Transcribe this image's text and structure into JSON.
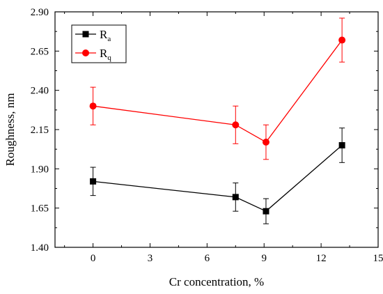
{
  "chart_data": {
    "type": "line",
    "xlabel": "Cr concentration, %",
    "ylabel": "Roughness, nm",
    "xlim": [
      -2,
      15
    ],
    "ylim": [
      1.4,
      2.9
    ],
    "xticks": [
      "0",
      "3",
      "6",
      "9",
      "12",
      "15"
    ],
    "yticks": [
      "1.40",
      "1.65",
      "1.90",
      "2.15",
      "2.40",
      "2.65",
      "2.90"
    ],
    "grid": false,
    "legend_position": "top-left",
    "series": [
      {
        "name": "R",
        "subscript": "a",
        "color": "#000000",
        "marker": "square",
        "x": [
          0,
          7.5,
          9.1,
          13.1
        ],
        "y": [
          1.82,
          1.72,
          1.63,
          2.05
        ],
        "error": [
          0.09,
          0.09,
          0.08,
          0.11
        ]
      },
      {
        "name": "R",
        "subscript": "q",
        "color": "#ff0000",
        "marker": "circle",
        "x": [
          0,
          7.5,
          9.1,
          13.1
        ],
        "y": [
          2.3,
          2.18,
          2.07,
          2.72
        ],
        "error": [
          0.12,
          0.12,
          0.11,
          0.14
        ]
      }
    ]
  }
}
